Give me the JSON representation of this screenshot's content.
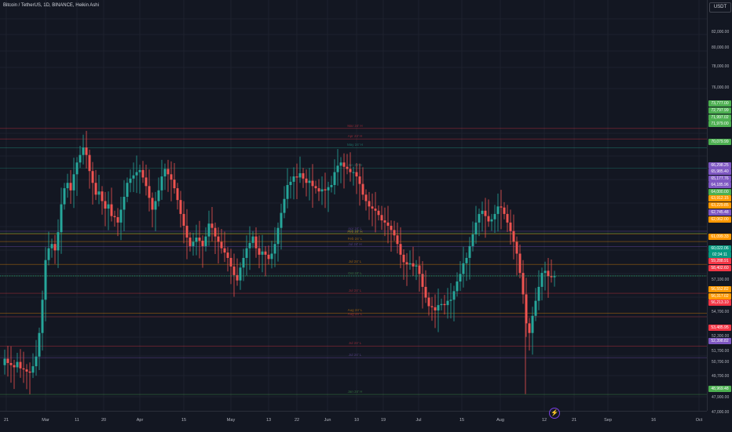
{
  "header": {
    "symbol_title": "Bitcoin / TetherUS, 1D, BINANCE, Heikin Ashi",
    "currency": "USDT"
  },
  "price_axis": {
    "labels": [
      "84,000.00",
      "82,000.00",
      "80,000.00",
      "78,000.00",
      "76,000.00",
      "57,100.00",
      "54,700.00",
      "52,300.00",
      "51,700.00",
      "50,700.00",
      "49,700.00",
      "47,900.00",
      "47,000.00"
    ]
  },
  "time_axis": {
    "labels": [
      "21",
      "Mar",
      "11",
      "20",
      "Apr",
      "15",
      "May",
      "13",
      "22",
      "Jun",
      "10",
      "19",
      "Jul",
      "15",
      "Aug",
      "12",
      "21",
      "Sep",
      "16",
      "Oct"
    ]
  },
  "level_lines": [
    {
      "label": "Mar 24' H",
      "price": 73777,
      "color": "#f23645"
    },
    {
      "label": "Apr 24' H",
      "price": 72797.99,
      "color": "#f23645"
    },
    {
      "label": "May 24' H",
      "price": 71979,
      "color": "#22ab94"
    },
    {
      "label": "Jun 24' H",
      "price": 70079.99,
      "color": "#22ab94"
    },
    {
      "label": "Apr 24' L",
      "price": 64185.96,
      "color": "#7e57c2"
    },
    {
      "label": "Jun 24' L",
      "price": 64000,
      "color": "#4caf50"
    },
    {
      "label": "Feb 24' H",
      "price": 63912.15,
      "color": "#ff9800"
    },
    {
      "label": "Feb 24' L",
      "price": 63229.85,
      "color": "#ff9800"
    },
    {
      "label": "Jul 24' H",
      "price": 62745.48,
      "color": "#7e57c2"
    },
    {
      "label": "Jul 24' L",
      "price": 61099.33,
      "color": "#ff9800"
    },
    {
      "label": "Oct 24' L",
      "price": 60022.06,
      "color": "#4caf50"
    },
    {
      "label": "Jul 24' L",
      "price": 58402.6,
      "color": "#f23645"
    },
    {
      "label": "Aug 24' L",
      "price": 56552.82,
      "color": "#ff9800"
    },
    {
      "label": "Aug 24' L",
      "price": 56213.1,
      "color": "#f23645"
    },
    {
      "label": "Jul 24' L",
      "price": 53485.95,
      "color": "#f23645"
    },
    {
      "label": "Jul 24' L",
      "price": 52398.82,
      "color": "#7e57c2"
    },
    {
      "label": "Jan 24' H",
      "price": 48969.48,
      "color": "#4caf50"
    }
  ],
  "price_tags": [
    {
      "text": "73,777.00",
      "color": "#4caf50"
    },
    {
      "text": "72,797.99",
      "color": "#4caf50"
    },
    {
      "text": "71,997.02",
      "color": "#4caf50"
    },
    {
      "text": "71,979.00",
      "color": "#4caf50"
    },
    {
      "text": "70,079.99",
      "color": "#4caf50"
    },
    {
      "text": "66,298.25",
      "color": "#7e57c2"
    },
    {
      "text": "65,985.40",
      "color": "#7e57c2"
    },
    {
      "text": "65,177.76",
      "color": "#7e57c2"
    },
    {
      "text": "64,185.96",
      "color": "#7e57c2"
    },
    {
      "text": "64,000.00",
      "color": "#4caf50"
    },
    {
      "text": "63,912.15",
      "color": "#ff9800"
    },
    {
      "text": "63,229.85",
      "color": "#ff9800"
    },
    {
      "text": "62,745.48",
      "color": "#7e57c2"
    },
    {
      "text": "62,062.00",
      "color": "#ff9800"
    },
    {
      "text": "61,099.33",
      "color": "#ff9800"
    },
    {
      "text": "60,022.06",
      "color": "#089981"
    },
    {
      "text": "02:34:11",
      "color": "#089981"
    },
    {
      "text": "59,288.91",
      "color": "#f23645"
    },
    {
      "text": "58,402.60",
      "color": "#f23645"
    },
    {
      "text": "56,552.82",
      "color": "#ff9800"
    },
    {
      "text": "56,317.02",
      "color": "#ff9800"
    },
    {
      "text": "56,213.10",
      "color": "#f23645"
    },
    {
      "text": "53,485.95",
      "color": "#f23645"
    },
    {
      "text": "52,398.82",
      "color": "#7e57c2"
    },
    {
      "text": "48,969.48",
      "color": "#4caf50"
    }
  ],
  "colors": {
    "up": "#26a69a",
    "down": "#ef5350",
    "background": "#131722",
    "grid": "#1e222d"
  },
  "chart_data": {
    "type": "candlestick",
    "style": "Heikin Ashi",
    "symbol": "BTCUSDT",
    "interval": "1D",
    "exchange": "BINANCE",
    "ylim": [
      47000,
      85000
    ],
    "last_price": 60022.06,
    "countdown": "02:34:11",
    "close_path": [
      [
        0,
        51700
      ],
      [
        4,
        52300
      ],
      [
        8,
        51900
      ],
      [
        12,
        51700
      ],
      [
        16,
        51500
      ],
      [
        20,
        52000
      ],
      [
        24,
        51400
      ],
      [
        28,
        51300
      ],
      [
        32,
        51100
      ],
      [
        36,
        51000
      ],
      [
        40,
        51600
      ],
      [
        44,
        52500
      ],
      [
        48,
        54700
      ],
      [
        52,
        57800
      ],
      [
        56,
        61500
      ],
      [
        60,
        62600
      ],
      [
        64,
        63000
      ],
      [
        68,
        62400
      ],
      [
        72,
        64100
      ],
      [
        76,
        66700
      ],
      [
        80,
        68200
      ],
      [
        84,
        68700
      ],
      [
        88,
        68000
      ],
      [
        92,
        69500
      ],
      [
        96,
        70600
      ],
      [
        100,
        71300
      ],
      [
        104,
        72000
      ],
      [
        108,
        71300
      ],
      [
        112,
        69800
      ],
      [
        116,
        68700
      ],
      [
        120,
        67600
      ],
      [
        124,
        67900
      ],
      [
        128,
        67000
      ],
      [
        132,
        66300
      ],
      [
        136,
        66700
      ],
      [
        140,
        65600
      ],
      [
        144,
        65500
      ],
      [
        148,
        65000
      ],
      [
        152,
        66200
      ],
      [
        156,
        67400
      ],
      [
        160,
        68700
      ],
      [
        164,
        69100
      ],
      [
        168,
        69400
      ],
      [
        172,
        69700
      ],
      [
        176,
        69900
      ],
      [
        180,
        69200
      ],
      [
        184,
        68400
      ],
      [
        188,
        67300
      ],
      [
        192,
        66200
      ],
      [
        196,
        67000
      ],
      [
        200,
        68000
      ],
      [
        204,
        69300
      ],
      [
        208,
        70000
      ],
      [
        212,
        69500
      ],
      [
        216,
        69000
      ],
      [
        220,
        68200
      ],
      [
        224,
        67100
      ],
      [
        228,
        65800
      ],
      [
        232,
        64700
      ],
      [
        236,
        63600
      ],
      [
        240,
        62800
      ],
      [
        244,
        63200
      ],
      [
        248,
        63600
      ],
      [
        252,
        63300
      ],
      [
        256,
        62800
      ],
      [
        260,
        63700
      ],
      [
        264,
        64900
      ],
      [
        268,
        64500
      ],
      [
        272,
        63700
      ],
      [
        276,
        63200
      ],
      [
        280,
        62600
      ],
      [
        284,
        62200
      ],
      [
        288,
        61700
      ],
      [
        292,
        60900
      ],
      [
        296,
        60100
      ],
      [
        300,
        59600
      ],
      [
        304,
        60800
      ],
      [
        308,
        61700
      ],
      [
        312,
        62600
      ],
      [
        316,
        63100
      ],
      [
        320,
        63700
      ],
      [
        324,
        62600
      ],
      [
        328,
        62000
      ],
      [
        332,
        62300
      ],
      [
        336,
        62000
      ],
      [
        340,
        61600
      ],
      [
        344,
        62100
      ],
      [
        348,
        63000
      ],
      [
        352,
        64500
      ],
      [
        356,
        65900
      ],
      [
        360,
        67200
      ],
      [
        364,
        68500
      ],
      [
        368,
        68800
      ],
      [
        372,
        69300
      ],
      [
        376,
        69200
      ],
      [
        380,
        69600
      ],
      [
        384,
        69100
      ],
      [
        388,
        68700
      ],
      [
        392,
        68900
      ],
      [
        396,
        68400
      ],
      [
        400,
        68200
      ],
      [
        404,
        67900
      ],
      [
        408,
        68100
      ],
      [
        412,
        68000
      ],
      [
        416,
        68300
      ],
      [
        420,
        68500
      ],
      [
        424,
        69700
      ],
      [
        428,
        70300
      ],
      [
        432,
        70600
      ],
      [
        436,
        70200
      ],
      [
        440,
        70000
      ],
      [
        444,
        69700
      ],
      [
        448,
        69700
      ],
      [
        452,
        69300
      ],
      [
        456,
        68600
      ],
      [
        460,
        67600
      ],
      [
        464,
        67000
      ],
      [
        468,
        66500
      ],
      [
        472,
        66300
      ],
      [
        476,
        66100
      ],
      [
        480,
        65700
      ],
      [
        484,
        65200
      ],
      [
        488,
        65000
      ],
      [
        492,
        64700
      ],
      [
        496,
        64300
      ],
      [
        500,
        63800
      ],
      [
        504,
        63000
      ],
      [
        508,
        62000
      ],
      [
        512,
        61300
      ],
      [
        516,
        61100
      ],
      [
        520,
        61200
      ],
      [
        524,
        60900
      ],
      [
        528,
        61000
      ],
      [
        532,
        60200
      ],
      [
        536,
        59000
      ],
      [
        540,
        58000
      ],
      [
        544,
        57200
      ],
      [
        548,
        57100
      ],
      [
        552,
        56800
      ],
      [
        556,
        57300
      ],
      [
        560,
        57400
      ],
      [
        564,
        57300
      ],
      [
        568,
        57700
      ],
      [
        572,
        57800
      ],
      [
        576,
        58600
      ],
      [
        580,
        59500
      ],
      [
        584,
        60200
      ],
      [
        588,
        61200
      ],
      [
        592,
        61700
      ],
      [
        596,
        62800
      ],
      [
        600,
        63900
      ],
      [
        604,
        65000
      ],
      [
        608,
        65800
      ],
      [
        612,
        66100
      ],
      [
        616,
        65600
      ],
      [
        620,
        65100
      ],
      [
        624,
        65300
      ],
      [
        628,
        65800
      ],
      [
        632,
        66500
      ],
      [
        636,
        66400
      ],
      [
        640,
        65800
      ],
      [
        644,
        65000
      ],
      [
        648,
        64200
      ],
      [
        652,
        63200
      ],
      [
        656,
        62100
      ],
      [
        660,
        60300
      ],
      [
        664,
        58300
      ],
      [
        668,
        55600
      ],
      [
        672,
        54700
      ],
      [
        676,
        56300
      ],
      [
        680,
        57700
      ],
      [
        684,
        59000
      ],
      [
        688,
        60300
      ],
      [
        692,
        60500
      ],
      [
        696,
        60000
      ],
      [
        700,
        59900
      ],
      [
        704,
        60000
      ]
    ]
  },
  "mode_icon": "lightning-icon"
}
